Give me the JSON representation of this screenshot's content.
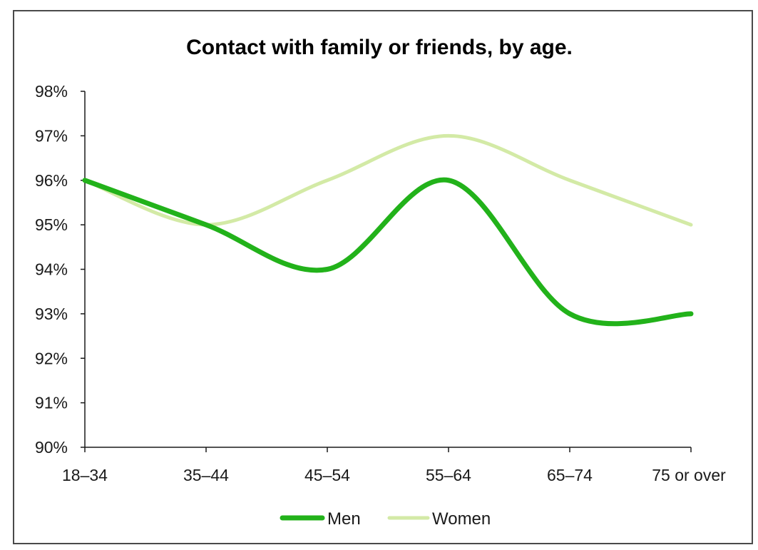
{
  "chart_data": {
    "type": "line",
    "title": "Contact with family or friends, by age.",
    "xlabel": "",
    "ylabel": "",
    "categories": [
      "18–34",
      "35–44",
      "45–54",
      "55–64",
      "65–74",
      "75 or over"
    ],
    "y_ticks": [
      "90%",
      "91%",
      "92%",
      "93%",
      "94%",
      "95%",
      "96%",
      "97%",
      "98%"
    ],
    "ylim": [
      90,
      98
    ],
    "grid": false,
    "legend_position": "bottom",
    "smooth": true,
    "series": [
      {
        "name": "Men",
        "color": "#22b21a",
        "values": [
          96,
          95,
          94,
          96,
          93,
          93
        ]
      },
      {
        "name": "Women",
        "color": "#d3eaa6",
        "values": [
          96,
          95,
          96,
          97,
          96,
          95
        ]
      }
    ]
  }
}
